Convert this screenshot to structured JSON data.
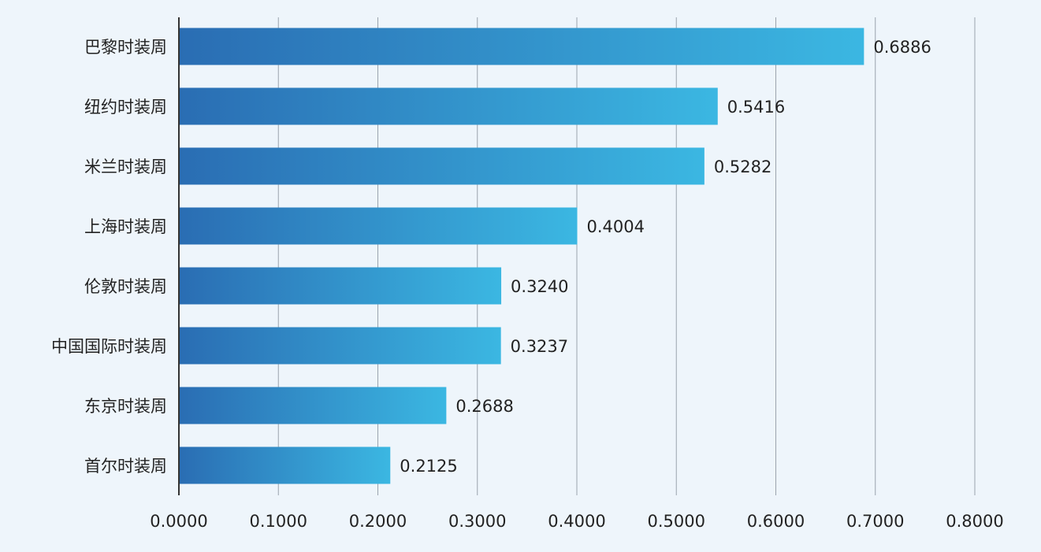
{
  "colors": {
    "background": "#eef5fb",
    "bar_gradient_start": "#2a6db3",
    "bar_gradient_end": "#3bb7e2",
    "gridline": "#9aa3ad",
    "axis": "#333333"
  },
  "chart_data": {
    "type": "bar",
    "orientation": "horizontal",
    "title": "",
    "xlabel": "",
    "ylabel": "",
    "categories": [
      "巴黎时装周",
      "纽约时装周",
      "米兰时装周",
      "上海时装周",
      "伦敦时装周",
      "中国国际时装周",
      "东京时装周",
      "首尔时装周"
    ],
    "values": [
      0.6886,
      0.5416,
      0.5282,
      0.4004,
      0.324,
      0.3237,
      0.2688,
      0.2125
    ],
    "value_labels": [
      "0.6886",
      "0.5416",
      "0.5282",
      "0.4004",
      "0.3240",
      "0.3237",
      "0.2688",
      "0.2125"
    ],
    "xlim": [
      0,
      0.8
    ],
    "xticks": [
      0,
      0.1,
      0.2,
      0.3,
      0.4,
      0.5,
      0.6,
      0.7,
      0.8
    ],
    "xtick_labels": [
      "0.0000",
      "0.1000",
      "0.2000",
      "0.3000",
      "0.4000",
      "0.5000",
      "0.6000",
      "0.7000",
      "0.8000"
    ],
    "grid": true,
    "legend": "none"
  }
}
